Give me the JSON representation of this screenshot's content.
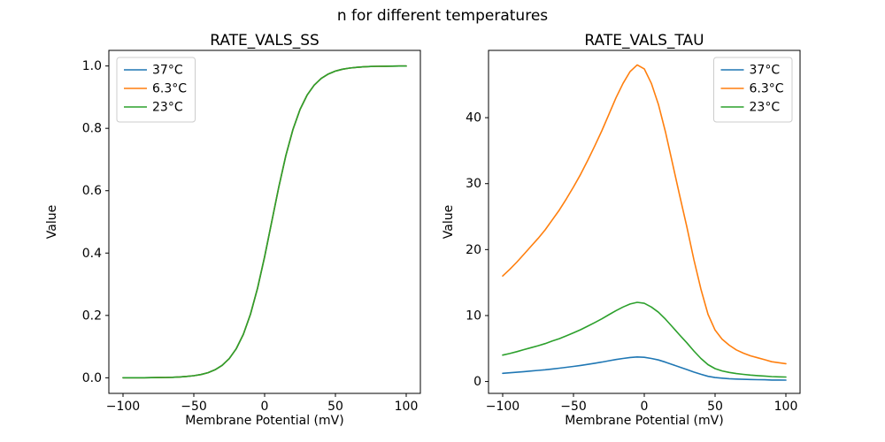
{
  "figure": {
    "suptitle": "n for different temperatures",
    "background": "#ffffff"
  },
  "chart_data": [
    {
      "type": "line",
      "title": "RATE_VALS_SS",
      "xlabel": "Membrane Potential (mV)",
      "ylabel": "Value",
      "xlim": [
        -110,
        110
      ],
      "ylim": [
        -0.05,
        1.05
      ],
      "xticks": [
        -100,
        -50,
        0,
        50,
        100
      ],
      "xtick_labels": [
        "−100",
        "−50",
        "0",
        "50",
        "100"
      ],
      "yticks": [
        0.0,
        0.2,
        0.4,
        0.6,
        0.8,
        1.0
      ],
      "ytick_labels": [
        "0.0",
        "0.2",
        "0.4",
        "0.6",
        "0.8",
        "1.0"
      ],
      "grid": false,
      "legend_position": "upper-left",
      "x": [
        -100,
        -95,
        -90,
        -85,
        -80,
        -75,
        -70,
        -65,
        -60,
        -55,
        -50,
        -45,
        -40,
        -35,
        -30,
        -25,
        -20,
        -15,
        -10,
        -5,
        0,
        5,
        10,
        15,
        20,
        25,
        30,
        35,
        40,
        45,
        50,
        55,
        60,
        65,
        70,
        75,
        80,
        85,
        90,
        95,
        100
      ],
      "series": [
        {
          "name": "37°C",
          "color": "#1f77b4",
          "values": [
            0.0001,
            0.0001,
            0.0002,
            0.0003,
            0.0004,
            0.0007,
            0.0011,
            0.0017,
            0.0027,
            0.0043,
            0.0067,
            0.0105,
            0.0164,
            0.0257,
            0.0399,
            0.0613,
            0.0934,
            0.1397,
            0.2036,
            0.2871,
            0.3883,
            0.5,
            0.6117,
            0.7129,
            0.7964,
            0.8603,
            0.9066,
            0.9386,
            0.9601,
            0.9744,
            0.9836,
            0.9895,
            0.9933,
            0.9957,
            0.9973,
            0.9983,
            0.9989,
            0.9993,
            0.9996,
            0.9997,
            0.9998
          ]
        },
        {
          "name": "6.3°C",
          "color": "#ff7f0e",
          "values": [
            0.0001,
            0.0001,
            0.0002,
            0.0003,
            0.0004,
            0.0007,
            0.0011,
            0.0017,
            0.0027,
            0.0043,
            0.0067,
            0.0105,
            0.0164,
            0.0257,
            0.0399,
            0.0613,
            0.0934,
            0.1397,
            0.2036,
            0.2871,
            0.3883,
            0.5,
            0.6117,
            0.7129,
            0.7964,
            0.8603,
            0.9066,
            0.9386,
            0.9601,
            0.9744,
            0.9836,
            0.9895,
            0.9933,
            0.9957,
            0.9973,
            0.9983,
            0.9989,
            0.9993,
            0.9996,
            0.9997,
            0.9998
          ]
        },
        {
          "name": "23°C",
          "color": "#2ca02c",
          "values": [
            0.0001,
            0.0001,
            0.0002,
            0.0003,
            0.0004,
            0.0007,
            0.0011,
            0.0017,
            0.0027,
            0.0043,
            0.0067,
            0.0105,
            0.0164,
            0.0257,
            0.0399,
            0.0613,
            0.0934,
            0.1397,
            0.2036,
            0.2871,
            0.3883,
            0.5,
            0.6117,
            0.7129,
            0.7964,
            0.8603,
            0.9066,
            0.9386,
            0.9601,
            0.9744,
            0.9836,
            0.9895,
            0.9933,
            0.9957,
            0.9973,
            0.9983,
            0.9989,
            0.9993,
            0.9996,
            0.9997,
            0.9998
          ]
        }
      ],
      "note": "All three curves overlap exactly; green (23°C) drawn last is visible."
    },
    {
      "type": "line",
      "title": "RATE_VALS_TAU",
      "xlabel": "Membrane Potential (mV)",
      "ylabel": "Value",
      "xlim": [
        -110,
        110
      ],
      "ylim": [
        -1.8,
        50.2
      ],
      "xticks": [
        -100,
        -50,
        0,
        50,
        100
      ],
      "xtick_labels": [
        "−100",
        "−50",
        "0",
        "50",
        "100"
      ],
      "yticks": [
        0,
        10,
        20,
        30,
        40
      ],
      "ytick_labels": [
        "0",
        "10",
        "20",
        "30",
        "40"
      ],
      "grid": false,
      "legend_position": "upper-right",
      "x": [
        -100,
        -95,
        -90,
        -85,
        -80,
        -75,
        -70,
        -65,
        -60,
        -55,
        -50,
        -45,
        -40,
        -35,
        -30,
        -25,
        -20,
        -15,
        -10,
        -5,
        0,
        5,
        10,
        15,
        20,
        25,
        30,
        35,
        40,
        45,
        50,
        55,
        60,
        65,
        70,
        75,
        80,
        85,
        90,
        95,
        100
      ],
      "series": [
        {
          "name": "37°C",
          "color": "#1f77b4",
          "values": [
            1.24,
            1.32,
            1.4,
            1.5,
            1.59,
            1.68,
            1.78,
            1.9,
            2.02,
            2.15,
            2.29,
            2.43,
            2.6,
            2.77,
            2.95,
            3.14,
            3.33,
            3.5,
            3.64,
            3.72,
            3.67,
            3.5,
            3.26,
            2.93,
            2.56,
            2.19,
            1.82,
            1.43,
            1.09,
            0.79,
            0.6,
            0.5,
            0.43,
            0.37,
            0.33,
            0.3,
            0.28,
            0.26,
            0.23,
            0.22,
            0.21
          ]
        },
        {
          "name": "6.3°C",
          "color": "#ff7f0e",
          "values": [
            16.0,
            17.0,
            18.1,
            19.3,
            20.5,
            21.7,
            23.0,
            24.5,
            26.0,
            27.7,
            29.5,
            31.4,
            33.5,
            35.7,
            38.0,
            40.5,
            43.0,
            45.2,
            47.0,
            48.0,
            47.4,
            45.2,
            42.0,
            37.8,
            33.0,
            28.2,
            23.5,
            18.5,
            14.0,
            10.2,
            7.8,
            6.4,
            5.5,
            4.8,
            4.3,
            3.9,
            3.6,
            3.3,
            3.0,
            2.85,
            2.7
          ]
        },
        {
          "name": "23°C",
          "color": "#2ca02c",
          "values": [
            4.0,
            4.25,
            4.53,
            4.83,
            5.13,
            5.43,
            5.75,
            6.13,
            6.5,
            6.93,
            7.38,
            7.85,
            8.38,
            8.93,
            9.5,
            10.13,
            10.75,
            11.3,
            11.75,
            12.0,
            11.85,
            11.3,
            10.5,
            9.45,
            8.25,
            7.05,
            5.88,
            4.63,
            3.5,
            2.55,
            1.95,
            1.6,
            1.38,
            1.2,
            1.08,
            0.98,
            0.9,
            0.83,
            0.75,
            0.71,
            0.68
          ]
        }
      ]
    }
  ]
}
